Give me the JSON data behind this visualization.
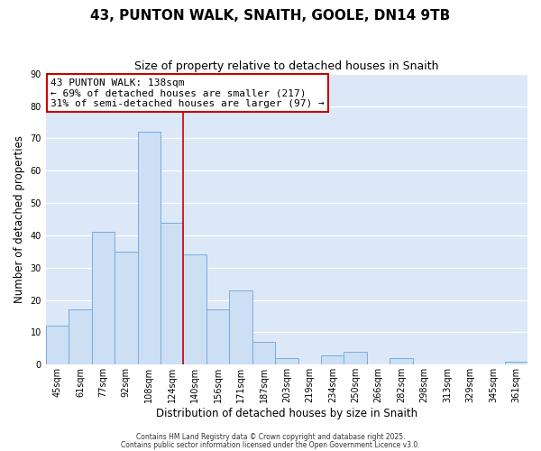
{
  "title": "43, PUNTON WALK, SNAITH, GOOLE, DN14 9TB",
  "subtitle": "Size of property relative to detached houses in Snaith",
  "xlabel": "Distribution of detached houses by size in Snaith",
  "ylabel": "Number of detached properties",
  "bar_labels": [
    "45sqm",
    "61sqm",
    "77sqm",
    "92sqm",
    "108sqm",
    "124sqm",
    "140sqm",
    "156sqm",
    "171sqm",
    "187sqm",
    "203sqm",
    "219sqm",
    "234sqm",
    "250sqm",
    "266sqm",
    "282sqm",
    "298sqm",
    "313sqm",
    "329sqm",
    "345sqm",
    "361sqm"
  ],
  "bar_values": [
    12,
    17,
    41,
    35,
    72,
    44,
    34,
    17,
    23,
    7,
    2,
    0,
    3,
    4,
    0,
    2,
    0,
    0,
    0,
    0,
    1
  ],
  "bar_color": "#ccdff5",
  "bar_edge_color": "#7aabdc",
  "vline_color": "#cc0000",
  "ylim": [
    0,
    90
  ],
  "yticks": [
    0,
    10,
    20,
    30,
    40,
    50,
    60,
    70,
    80,
    90
  ],
  "annotation_line1": "43 PUNTON WALK: 138sqm",
  "annotation_line2": "← 69% of detached houses are smaller (217)",
  "annotation_line3": "31% of semi-detached houses are larger (97) →",
  "annotation_box_color": "#ffffff",
  "annotation_box_edge": "#cc0000",
  "background_color": "#dce8f8",
  "footer_line1": "Contains HM Land Registry data © Crown copyright and database right 2025.",
  "footer_line2": "Contains public sector information licensed under the Open Government Licence v3.0.",
  "title_fontsize": 11,
  "subtitle_fontsize": 9,
  "tick_fontsize": 7,
  "xlabel_fontsize": 8.5,
  "ylabel_fontsize": 8.5,
  "annotation_fontsize": 8,
  "footer_fontsize": 5.5
}
